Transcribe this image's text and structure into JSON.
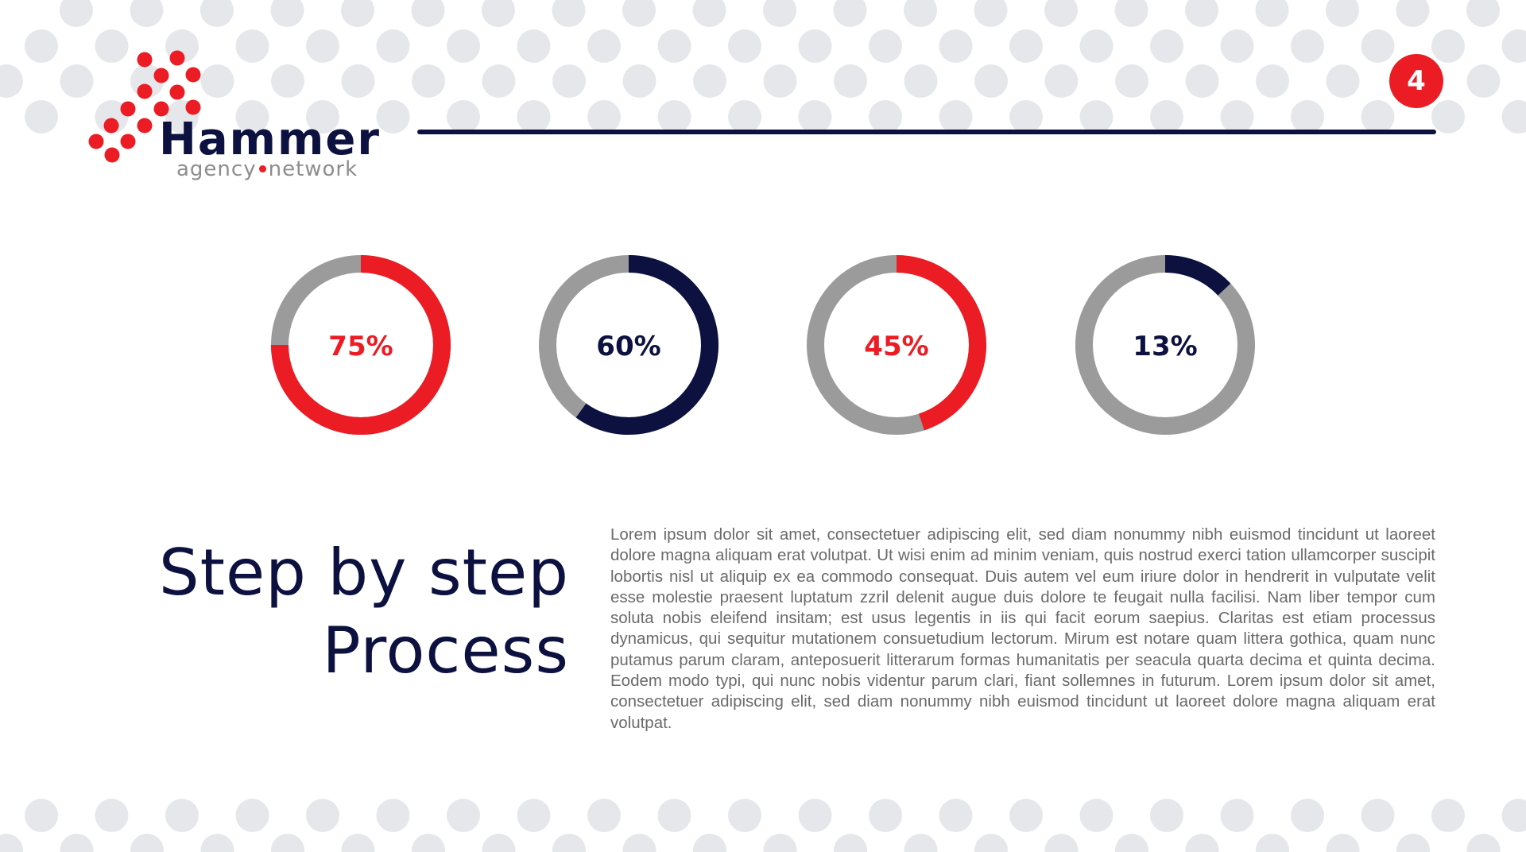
{
  "brand": {
    "name": "Hammer",
    "tagline_left": "agency",
    "tagline_right": "network",
    "colors": {
      "red": "#ec1c24",
      "navy": "#0c1140",
      "grey": "#9b9b9b",
      "dot": "#e6e7eb"
    }
  },
  "page": {
    "number": "4"
  },
  "heading": {
    "line1": "Step by step",
    "line2": "Process"
  },
  "body_text": "Lorem ipsum dolor sit amet, consectetuer adipiscing elit, sed diam nonummy nibh euismod tincidunt ut laoreet dolore magna aliquam erat volutpat. Ut wisi enim ad minim veniam, quis nostrud exerci tation ullamcorper suscipit lobortis nisl ut aliquip ex ea commodo consequat. Duis autem vel eum iriure dolor in hendrerit in vulputate velit esse molestie praesent luptatum zzril delenit augue duis dolore te feugait nulla facilisi. Nam liber tempor cum soluta nobis eleifend insitam; est usus legentis in iis qui facit eorum saepius. Claritas est etiam processus dynamicus, qui sequitur mutationem consuetudium lectorum. Mirum est notare quam littera gothica, quam nunc putamus parum claram, anteposuerit litterarum formas humanitatis per seacula quarta decima et quinta decima. Eodem modo typi, qui nunc nobis videntur parum clari, fiant sollemnes in futurum. Lorem ipsum dolor sit amet, consectetuer adipiscing elit, sed diam nonummy nibh euismod tincidunt ut laoreet dolore magna aliquam erat volutpat.",
  "chart_data": {
    "type": "pie",
    "series": [
      {
        "label": "75%",
        "value": 75,
        "color": "#ec1c24"
      },
      {
        "label": "60%",
        "value": 60,
        "color": "#0c1140"
      },
      {
        "label": "45%",
        "value": 45,
        "color": "#ec1c24"
      },
      {
        "label": "13%",
        "value": 13,
        "color": "#0c1140"
      }
    ],
    "track_color": "#9b9b9b",
    "legend": "none",
    "grid": false
  }
}
